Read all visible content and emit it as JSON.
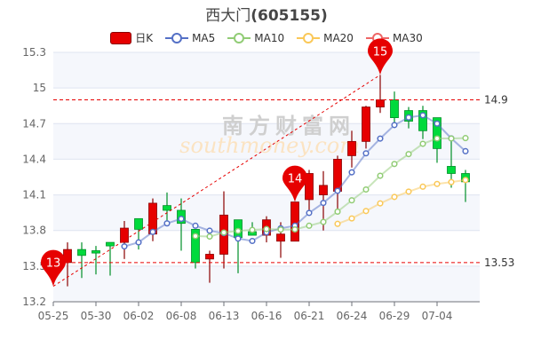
{
  "title": {
    "name": "西大门",
    "code": "(605155)"
  },
  "legend": [
    {
      "label": "日K",
      "color": "#e60000"
    },
    {
      "label": "MA5",
      "color": "#5470c6"
    },
    {
      "label": "MA10",
      "color": "#91cc75"
    },
    {
      "label": "MA20",
      "color": "#fac858"
    },
    {
      "label": "MA30",
      "color": "#ee6666"
    }
  ],
  "watermark": {
    "cn": "南方财富网",
    "en": "southmoney.com"
  },
  "chart_data": {
    "type": "candlestick",
    "ylim": [
      13.2,
      15.3
    ],
    "y_ticks": [
      "15.3",
      "15",
      "14.7",
      "14.4",
      "14.1",
      "13.8",
      "13.5",
      "13.2"
    ],
    "x_tick_labels": [
      "05-25",
      "05-30",
      "06-02",
      "06-08",
      "06-13",
      "06-16",
      "06-21",
      "06-24",
      "06-29",
      "07-04"
    ],
    "up_color": "#e60000",
    "down_color": "#00da3c",
    "grid": true,
    "ohlc": [
      [
        13.53,
        13.64,
        13.33,
        13.7
      ],
      [
        13.64,
        13.59,
        13.4,
        13.7
      ],
      [
        13.63,
        13.61,
        13.43,
        13.67
      ],
      [
        13.7,
        13.67,
        13.42,
        13.7
      ],
      [
        13.7,
        13.82,
        13.56,
        13.88
      ],
      [
        13.9,
        13.81,
        13.64,
        13.9
      ],
      [
        13.77,
        14.03,
        13.71,
        14.07
      ],
      [
        14.01,
        13.97,
        13.86,
        14.12
      ],
      [
        13.97,
        13.86,
        13.63,
        14.07
      ],
      [
        13.81,
        13.53,
        13.48,
        13.81
      ],
      [
        13.56,
        13.6,
        13.36,
        13.63
      ],
      [
        13.6,
        13.93,
        13.48,
        14.13
      ],
      [
        13.89,
        13.74,
        13.44,
        13.89
      ],
      [
        13.79,
        13.76,
        13.76,
        13.87
      ],
      [
        13.76,
        13.89,
        13.7,
        13.92
      ],
      [
        13.71,
        13.77,
        13.57,
        13.87
      ],
      [
        13.71,
        14.04,
        13.71,
        14.04
      ],
      [
        14.06,
        14.28,
        13.97,
        14.31
      ],
      [
        14.1,
        14.18,
        13.8,
        14.3
      ],
      [
        14.13,
        14.4,
        13.98,
        14.43
      ],
      [
        14.43,
        14.55,
        14.33,
        14.64
      ],
      [
        14.55,
        14.84,
        14.49,
        14.85
      ],
      [
        14.84,
        14.9,
        14.79,
        15.11
      ],
      [
        14.9,
        14.75,
        14.7,
        14.97
      ],
      [
        14.81,
        14.72,
        14.66,
        14.84
      ],
      [
        14.81,
        14.64,
        14.57,
        14.85
      ],
      [
        14.75,
        14.49,
        14.37,
        14.75
      ],
      [
        14.34,
        14.28,
        14.16,
        14.57
      ],
      [
        14.28,
        14.21,
        14.04,
        14.31
      ]
    ],
    "ma_periods": [
      5,
      10,
      20,
      30
    ],
    "mark_points": [
      {
        "label": "13",
        "index": -1,
        "value": 13.33
      },
      {
        "label": "14",
        "index": 16,
        "value": 14.04
      },
      {
        "label": "15",
        "index": 22,
        "value": 15.11
      }
    ],
    "mark_lines": [
      {
        "label": "14.9",
        "value": 14.9
      },
      {
        "label": "13.53",
        "value": 13.53
      }
    ]
  }
}
